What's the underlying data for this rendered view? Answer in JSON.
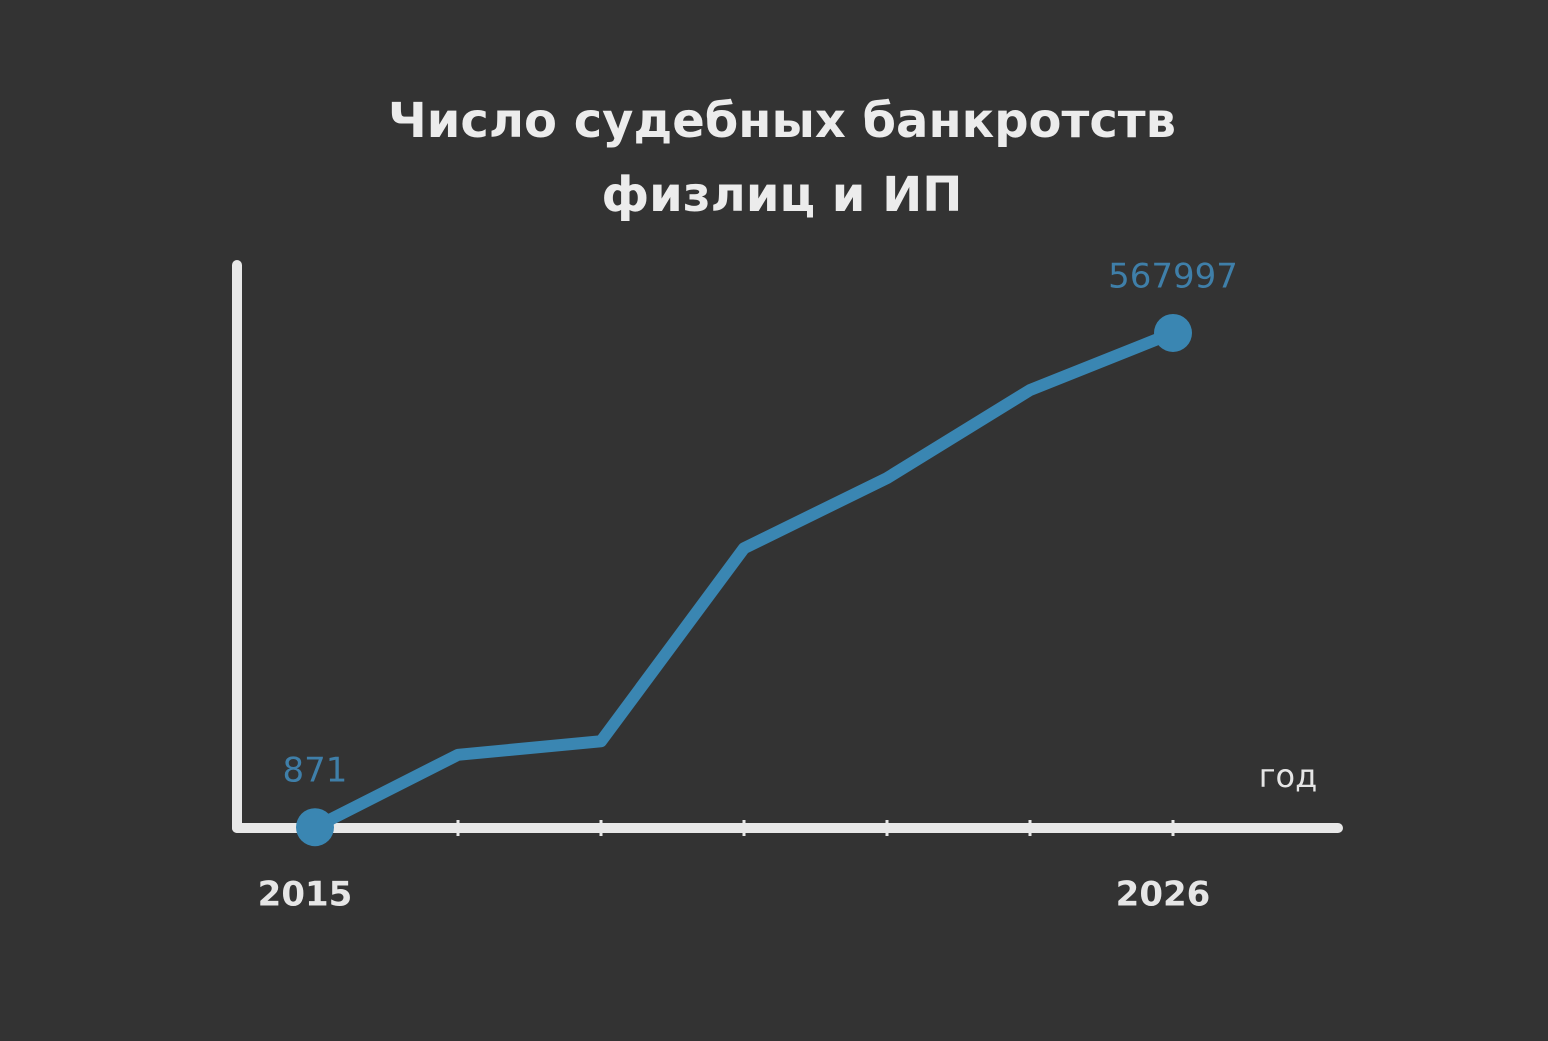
{
  "chart_data": {
    "type": "line",
    "title": [
      "Число судебных банкротств",
      "физлиц и ИП"
    ],
    "xlabel": "год",
    "categories": [
      "2015",
      null,
      null,
      null,
      null,
      null,
      "2026"
    ],
    "series": [
      {
        "color": "#3a86b2",
        "values": [
          871,
          84000,
          99500,
          321000,
          401500,
          502500,
          567997
        ]
      }
    ],
    "ylim": [
      0,
      646000
    ]
  }
}
